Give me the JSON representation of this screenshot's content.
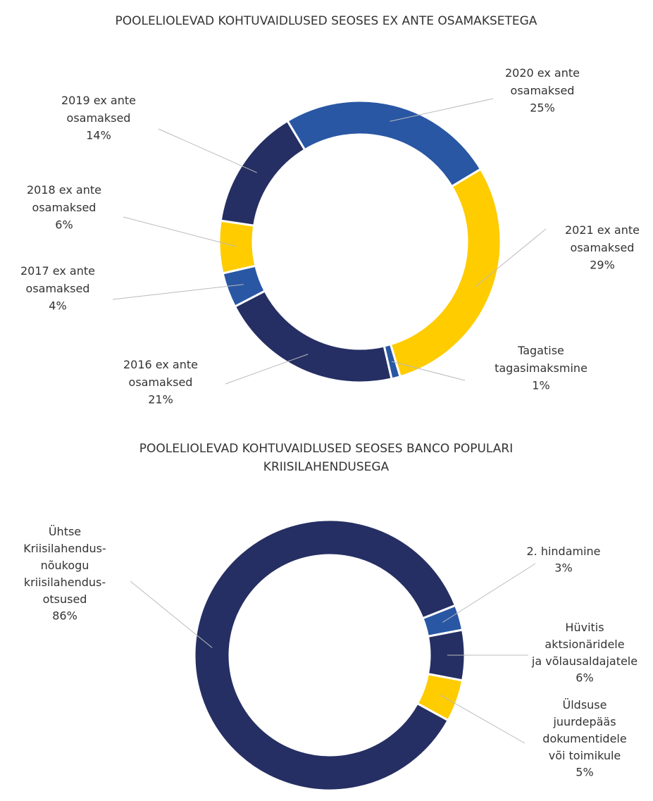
{
  "chart_data": [
    {
      "type": "donut",
      "title": "POOLELIOLEVAD KOHTUVAIDLUSED SEOSES EX ANTE OSAMAKSETEGA",
      "categories": [
        "2020 ex ante\nosamaksed",
        "2021 ex ante\nosamaksed",
        "Tagatise\ntagasimaksmine",
        "2016 ex ante\nosamaksed",
        "2017 ex ante\nosamaksed",
        "2018 ex ante\nosamaksed",
        "2019 ex ante\nosamaksed"
      ],
      "values": [
        25,
        29,
        1,
        21,
        4,
        6,
        14
      ],
      "value_labels": [
        "25%",
        "29%",
        "1%",
        "21%",
        "4%",
        "6%",
        "14%"
      ],
      "colors": [
        "#2957a4",
        "#ffcc00",
        "#2957a4",
        "#252f63",
        "#2957a4",
        "#ffcc00",
        "#252f63"
      ]
    },
    {
      "type": "donut",
      "title": "POOLELIOLEVAD KOHTUVAIDLUSED SEOSES BANCO POPULARI\nKRIISILAHENDUSEGA",
      "categories": [
        "Ühtse\nKriisilahendus-\nnõukogu\nkriisilahendus-\notsused",
        "2. hindamine",
        "Hüvitis\naktsionäridele\nja võlausaldajatele",
        "Üldsuse\njuurdepääs\ndokumentidele\nvõi toimikule"
      ],
      "values": [
        86,
        3,
        6,
        5
      ],
      "value_labels": [
        "86%",
        "3%",
        "6%",
        "5%"
      ],
      "colors": [
        "#252f63",
        "#2957a4",
        "#252f63",
        "#ffcc00"
      ]
    }
  ]
}
